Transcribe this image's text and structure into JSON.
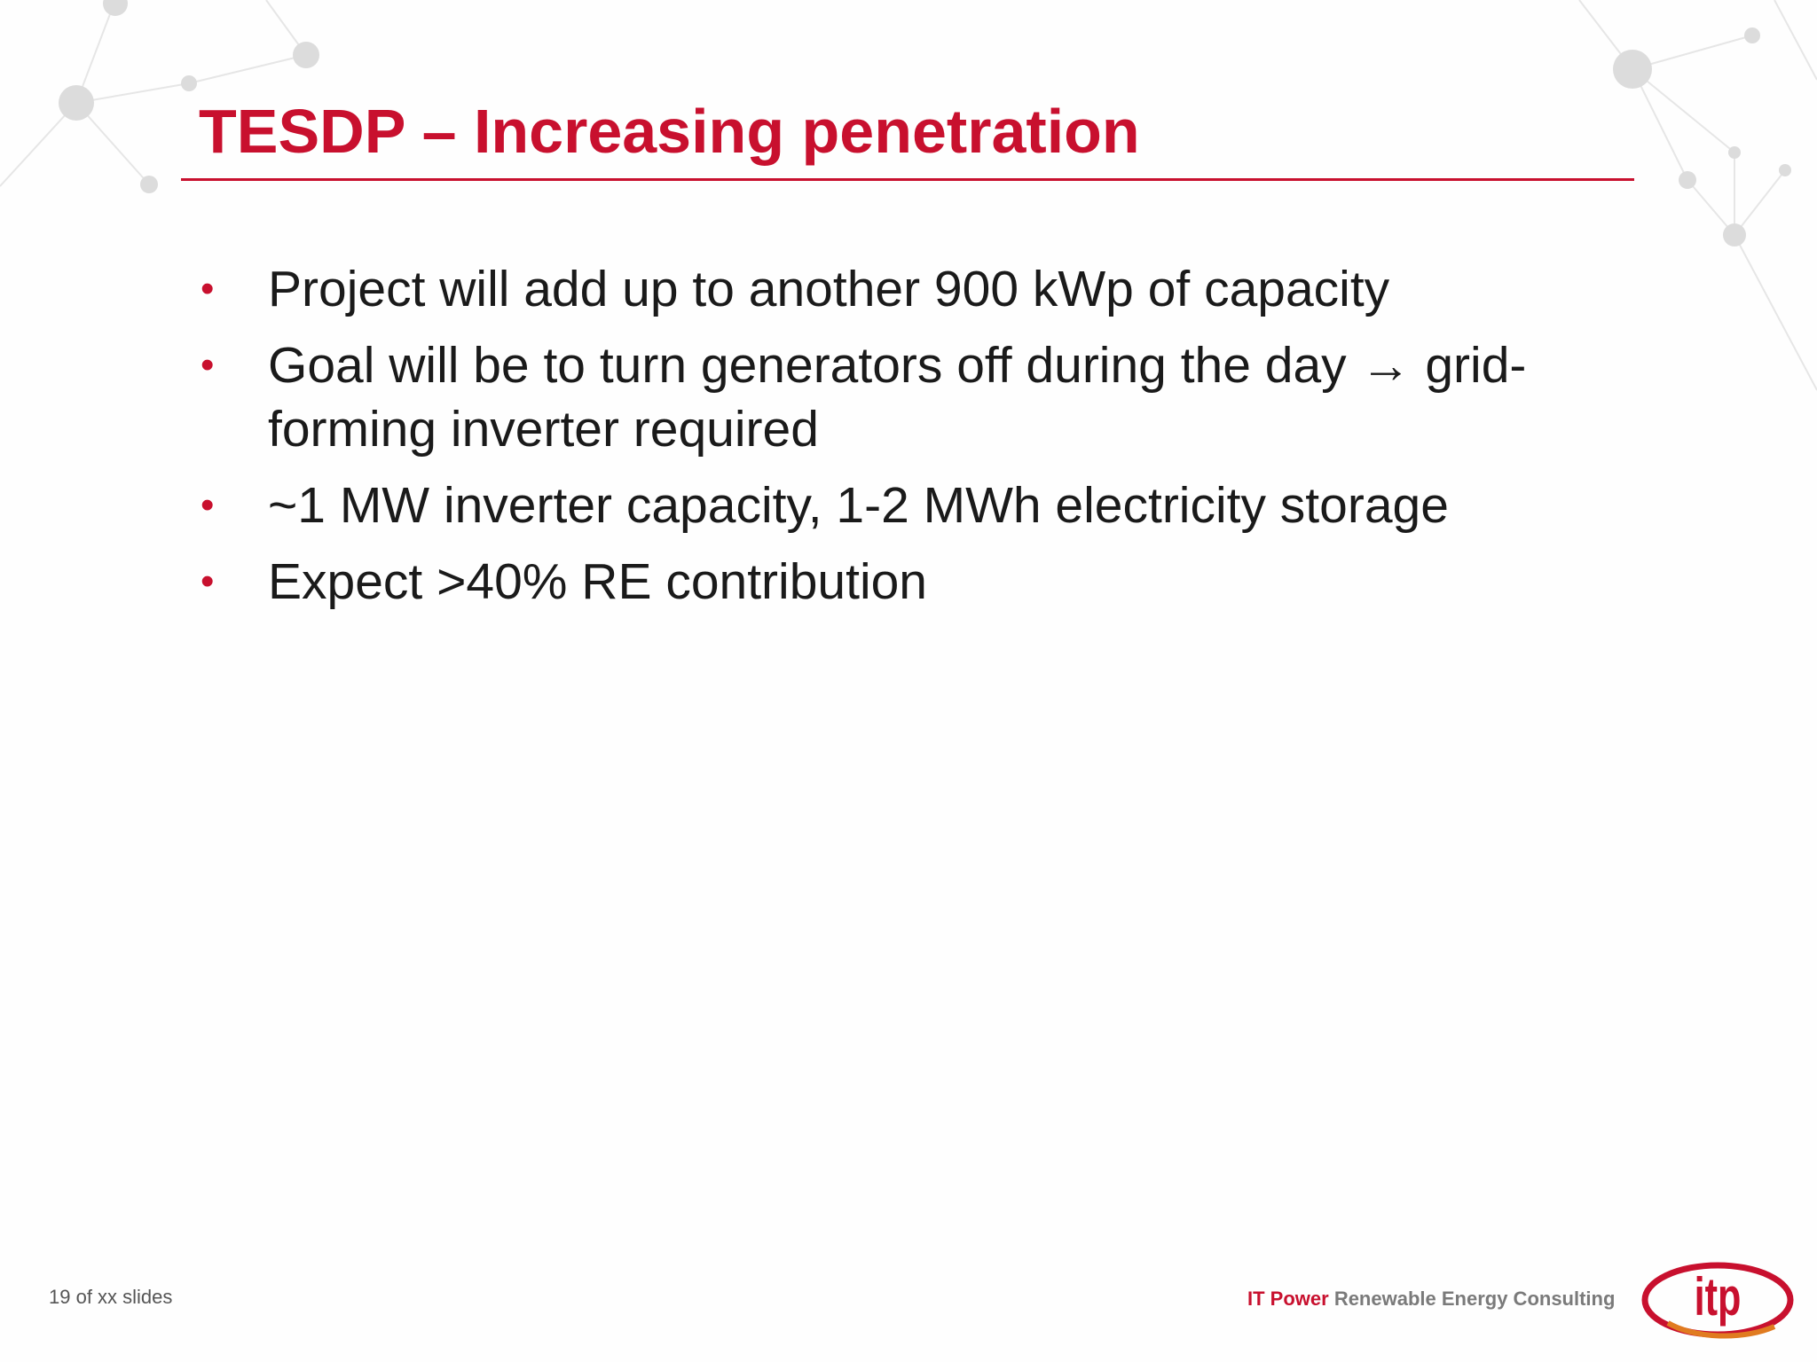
{
  "slide": {
    "title": "TESDP – Increasing penetration",
    "bullets": [
      "Project will add up to another 900 kWp of capacity",
      "Goal will be to turn generators off during the day → grid-forming inverter required",
      "~1 MW inverter capacity, 1-2 MWh electricity storage",
      "Expect >40% RE contribution"
    ],
    "bullet_glyph": "•",
    "slide_counter": "19 of xx slides"
  },
  "footer": {
    "company": "IT Power",
    "tagline": "Renewable Energy Consulting",
    "logo_text": "itp"
  },
  "colors": {
    "accent": "#c8102e",
    "body_text": "#1a1a1a",
    "muted_text": "#7a7a7a",
    "network_decoration": "#d9d9d9"
  }
}
